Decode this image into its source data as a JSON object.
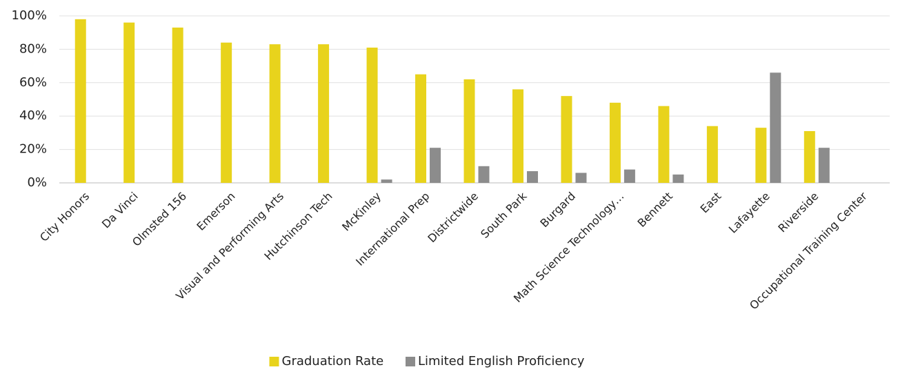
{
  "chart_data": {
    "type": "bar",
    "categories": [
      "City Honors",
      "Da Vinci",
      "Olmsted 156",
      "Emerson",
      "Visual and Performing Arts",
      "Hutchinson Tech",
      "McKinley",
      "International Prep",
      "Districtwide",
      "South Park",
      "Burgard",
      "Math Science Technology…",
      "Bennett",
      "East",
      "Lafayette",
      "Riverside",
      "Occupational Training Center"
    ],
    "series": [
      {
        "name": "Graduation Rate",
        "color": "#e8d31c",
        "values": [
          98,
          96,
          93,
          84,
          83,
          83,
          81,
          65,
          62,
          56,
          52,
          48,
          46,
          34,
          33,
          31,
          null
        ]
      },
      {
        "name": "Limited English Proficiency",
        "color": "#8c8c8c",
        "values": [
          null,
          null,
          null,
          null,
          null,
          null,
          2,
          21,
          10,
          7,
          6,
          8,
          5,
          null,
          66,
          21,
          null
        ]
      }
    ],
    "ylim": [
      0,
      100
    ],
    "yticks": [
      {
        "value": 0,
        "label": "0%"
      },
      {
        "value": 20,
        "label": "20%"
      },
      {
        "value": 40,
        "label": "40%"
      },
      {
        "value": 60,
        "label": "60%"
      },
      {
        "value": 80,
        "label": "80%"
      },
      {
        "value": 100,
        "label": "100%"
      }
    ],
    "grid": true,
    "legend": "bottom"
  }
}
